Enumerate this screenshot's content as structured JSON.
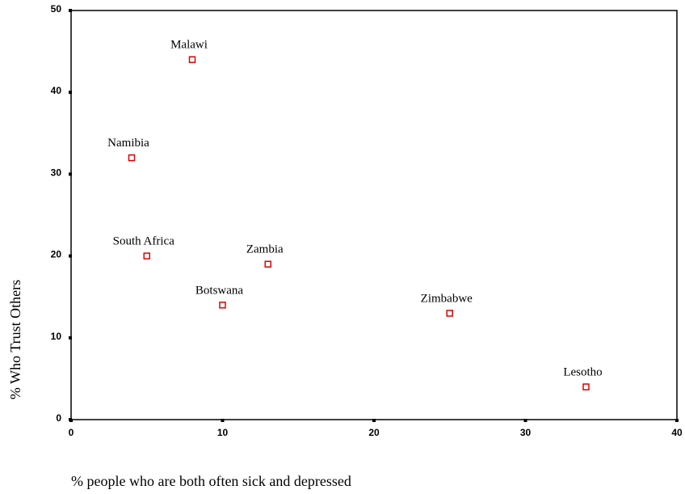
{
  "chart_data": {
    "type": "scatter",
    "x_label": "% people who are both often sick and depressed",
    "y_label": "% Who Trust Others",
    "labels": [
      "Malawi",
      "Namibia",
      "South Africa",
      "Zambia",
      "Botswana",
      "Zimbabwe",
      "Lesotho"
    ],
    "x": [
      8,
      4,
      5,
      13,
      10,
      25,
      34
    ],
    "values": [
      44,
      32,
      20,
      19,
      14,
      13,
      4
    ],
    "color": "#e00000",
    "xlim": [
      0,
      40
    ],
    "xticks": [
      0,
      10,
      20,
      30,
      40
    ],
    "ylim": [
      0,
      50
    ],
    "yticks": [
      0,
      10,
      20,
      30,
      40,
      50
    ]
  }
}
